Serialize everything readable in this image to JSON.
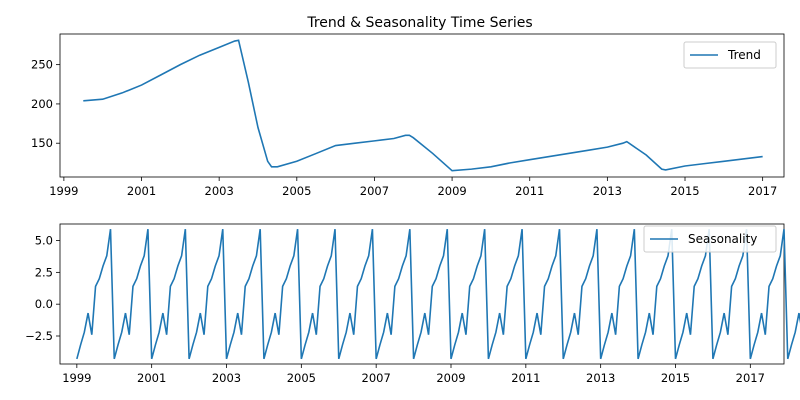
{
  "chart_data": [
    {
      "type": "line",
      "title": "Trend & Seasonality Time Series",
      "xlabel": "",
      "ylabel": "",
      "xlim": [
        1998.9,
        2017.55
      ],
      "ylim": [
        107,
        289
      ],
      "x_ticks": [
        1999,
        2001,
        2003,
        2005,
        2007,
        2009,
        2011,
        2013,
        2015,
        2017
      ],
      "y_ticks": [
        150,
        200,
        250
      ],
      "grid": false,
      "legend_position": "top-right",
      "series": [
        {
          "name": "Trend",
          "color": "#1f77b4",
          "x": [
            1999.5,
            2000.0,
            2000.5,
            2001.0,
            2001.5,
            2002.0,
            2002.5,
            2003.0,
            2003.4,
            2003.5,
            2003.75,
            2004.0,
            2004.25,
            2004.35,
            2004.5,
            2005.0,
            2005.5,
            2006.0,
            2006.5,
            2007.0,
            2007.5,
            2007.8,
            2007.9,
            2008.0,
            2008.5,
            2009.0,
            2009.5,
            2010.0,
            2010.5,
            2011.0,
            2011.5,
            2012.0,
            2012.5,
            2013.0,
            2013.4,
            2013.5,
            2014.0,
            2014.4,
            2014.5,
            2015.0,
            2015.5,
            2016.0,
            2016.5,
            2017.0
          ],
          "y": [
            204,
            206,
            214,
            224,
            237,
            250,
            262,
            272,
            280,
            281,
            228,
            170,
            127,
            120,
            120,
            127,
            137,
            147,
            150,
            153,
            156,
            160,
            160,
            157,
            137,
            115,
            117,
            120,
            125,
            129,
            133,
            137,
            141,
            145,
            150,
            152,
            135,
            117,
            116,
            121,
            124,
            127,
            130,
            133
          ]
        }
      ]
    },
    {
      "type": "line",
      "title": "",
      "xlabel": "",
      "ylabel": "",
      "xlim": [
        1998.55,
        2017.9
      ],
      "ylim": [
        -4.7,
        6.3
      ],
      "x_ticks": [
        1999,
        2001,
        2003,
        2005,
        2007,
        2009,
        2011,
        2013,
        2015,
        2017
      ],
      "y_ticks": [
        -2.5,
        0.0,
        2.5,
        5.0
      ],
      "y_tick_labels": [
        "−2.5",
        "0.0",
        "2.5",
        "5.0"
      ],
      "grid": false,
      "legend_position": "top-right",
      "series": [
        {
          "name": "Seasonality",
          "color": "#1f77b4",
          "start": 1999.0,
          "period": 1.0,
          "cycles": 19,
          "pattern": [
            -4.3,
            -3.2,
            -2.2,
            -0.7,
            -2.4,
            1.4,
            2.0,
            3.0,
            3.8,
            5.9
          ],
          "tail": [
            -4.3,
            -3.2,
            -2.2,
            -0.7,
            -2.4,
            1.4
          ]
        }
      ]
    }
  ]
}
